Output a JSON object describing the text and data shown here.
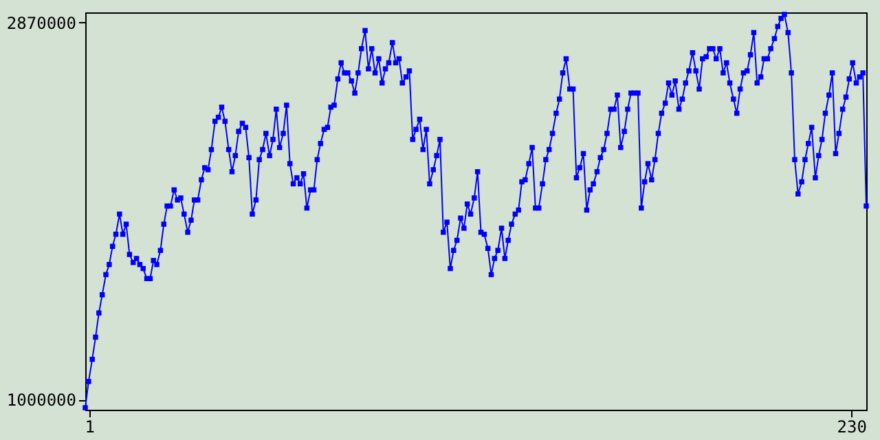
{
  "chart_data": {
    "type": "line",
    "marker": "square",
    "line_style": "solid",
    "grid": false,
    "xlim": [
      -0.2,
      234.5
    ],
    "xticks": [
      1,
      230
    ],
    "ylim": [
      950000,
      2920000
    ],
    "yticks": [
      1000000,
      2870000
    ],
    "x": [
      -0.2,
      0.8,
      1.9,
      2.9,
      3.9,
      4.9,
      6,
      7,
      8,
      9,
      10.1,
      11.1,
      12.1,
      13.1,
      14.2,
      15.2,
      16.2,
      17.2,
      18.3,
      19.3,
      20.3,
      21.3,
      22.4,
      23.4,
      24.4,
      25.4,
      26.5,
      27.5,
      28.5,
      29.5,
      30.6,
      31.6,
      32.6,
      33.6,
      34.7,
      35.7,
      36.7,
      37.7,
      38.8,
      39.8,
      40.8,
      41.8,
      42.9,
      43.9,
      44.9,
      45.9,
      47,
      48,
      49,
      50,
      51.1,
      52.1,
      53.1,
      54.1,
      55.2,
      56.2,
      57.2,
      58.2,
      59.3,
      60.3,
      61.3,
      62.3,
      63.4,
      64.4,
      65.4,
      66.4,
      67.5,
      68.5,
      69.5,
      70.5,
      71.6,
      72.6,
      73.6,
      74.6,
      75.7,
      76.7,
      77.7,
      78.7,
      79.8,
      80.8,
      81.8,
      82.8,
      83.9,
      84.9,
      85.9,
      86.9,
      88,
      89,
      90,
      91,
      92.1,
      93.1,
      94.1,
      95.1,
      96.2,
      97.2,
      98.2,
      99.2,
      100.3,
      101.3,
      102.3,
      103.3,
      104.4,
      105.4,
      106.4,
      107.4,
      108.5,
      109.5,
      110.5,
      111.5,
      112.6,
      113.6,
      114.6,
      115.6,
      116.7,
      117.7,
      118.7,
      119.7,
      120.8,
      121.8,
      122.8,
      123.8,
      124.9,
      125.9,
      126.9,
      127.9,
      129,
      130,
      131,
      132,
      133.1,
      134.1,
      135.1,
      136.1,
      137.2,
      138.2,
      139.2,
      140.2,
      141.3,
      142.3,
      143.3,
      144.3,
      145.4,
      146.4,
      147.4,
      148.4,
      149.5,
      150.5,
      151.5,
      152.5,
      153.6,
      154.6,
      155.6,
      156.6,
      157.7,
      158.7,
      159.7,
      160.7,
      161.8,
      162.8,
      163.8,
      164.8,
      165.9,
      166.9,
      167.9,
      168.9,
      170,
      171,
      172,
      173,
      174.1,
      175.1,
      176.1,
      177.1,
      178.2,
      179.2,
      180.2,
      181.2,
      182.3,
      183.3,
      184.3,
      185.3,
      186.4,
      187.4,
      188.4,
      189.4,
      190.5,
      191.5,
      192.5,
      193.5,
      194.6,
      195.6,
      196.6,
      197.6,
      198.7,
      199.7,
      200.7,
      201.7,
      202.8,
      203.8,
      204.8,
      205.8,
      206.9,
      207.9,
      208.9,
      209.9,
      211,
      212,
      213,
      214,
      215.1,
      216.1,
      217.1,
      218.1,
      219.2,
      220.2,
      221.2,
      222.2,
      223.3,
      224.3,
      225.3,
      226.3,
      227.4,
      228.4,
      229.4,
      230.4,
      231.5,
      232.5,
      233.5,
      234.5
    ],
    "series": [
      {
        "color": "#0000ff",
        "values": [
          960000,
          1090000,
          1200000,
          1310000,
          1430000,
          1520000,
          1620000,
          1670000,
          1760000,
          1820000,
          1920000,
          1820000,
          1870000,
          1720000,
          1680000,
          1700000,
          1670000,
          1650000,
          1600000,
          1600000,
          1690000,
          1670000,
          1740000,
          1870000,
          1960000,
          1960000,
          2040000,
          1990000,
          2000000,
          1920000,
          1830000,
          1890000,
          1990000,
          1990000,
          2090000,
          2150000,
          2140000,
          2240000,
          2380000,
          2400000,
          2450000,
          2380000,
          2240000,
          2130000,
          2210000,
          2330000,
          2370000,
          2350000,
          2200000,
          1920000,
          1990000,
          2190000,
          2240000,
          2320000,
          2210000,
          2290000,
          2440000,
          2250000,
          2320000,
          2460000,
          2170000,
          2070000,
          2100000,
          2070000,
          2120000,
          1950000,
          2040000,
          2040000,
          2190000,
          2270000,
          2340000,
          2350000,
          2450000,
          2460000,
          2590000,
          2670000,
          2620000,
          2620000,
          2580000,
          2520000,
          2620000,
          2740000,
          2830000,
          2640000,
          2740000,
          2620000,
          2690000,
          2570000,
          2640000,
          2670000,
          2770000,
          2670000,
          2690000,
          2570000,
          2600000,
          2630000,
          2290000,
          2340000,
          2390000,
          2240000,
          2340000,
          2070000,
          2140000,
          2210000,
          2290000,
          1830000,
          1880000,
          1650000,
          1740000,
          1790000,
          1900000,
          1850000,
          1970000,
          1920000,
          2000000,
          2130000,
          1830000,
          1820000,
          1750000,
          1620000,
          1700000,
          1740000,
          1850000,
          1700000,
          1790000,
          1870000,
          1920000,
          1940000,
          2080000,
          2090000,
          2170000,
          2250000,
          1950000,
          1950000,
          2070000,
          2190000,
          2240000,
          2320000,
          2420000,
          2490000,
          2620000,
          2690000,
          2540000,
          2540000,
          2100000,
          2150000,
          2220000,
          1940000,
          2040000,
          2070000,
          2130000,
          2200000,
          2240000,
          2320000,
          2440000,
          2440000,
          2510000,
          2250000,
          2330000,
          2440000,
          2520000,
          2520000,
          2520000,
          1950000,
          2080000,
          2170000,
          2090000,
          2190000,
          2320000,
          2420000,
          2470000,
          2570000,
          2510000,
          2580000,
          2440000,
          2490000,
          2570000,
          2630000,
          2720000,
          2630000,
          2540000,
          2690000,
          2700000,
          2740000,
          2740000,
          2690000,
          2740000,
          2620000,
          2670000,
          2570000,
          2490000,
          2420000,
          2540000,
          2620000,
          2630000,
          2710000,
          2820000,
          2570000,
          2600000,
          2690000,
          2690000,
          2740000,
          2790000,
          2850000,
          2890000,
          2910000,
          2820000,
          2620000,
          2190000,
          2020000,
          2080000,
          2190000,
          2270000,
          2350000,
          2100000,
          2210000,
          2290000,
          2420000,
          2510000,
          2620000,
          2220000,
          2320000,
          2440000,
          2500000,
          2590000,
          2670000,
          2570000,
          2600000,
          2620000,
          1960000
        ]
      }
    ]
  }
}
